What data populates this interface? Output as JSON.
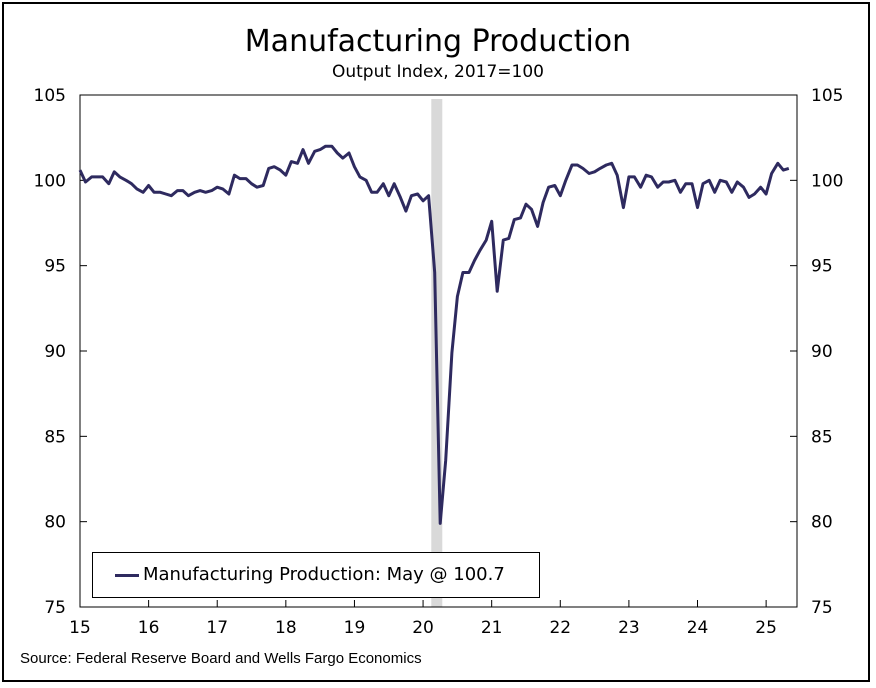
{
  "chart_data": {
    "type": "line",
    "title": "Manufacturing Production",
    "subtitle": "Output Index, 2017=100",
    "source": "Source: Federal Reserve Board and Wells Fargo Economics",
    "xlim": [
      2015,
      2025.45
    ],
    "ylim": [
      75,
      105
    ],
    "yticks": [
      75,
      80,
      85,
      90,
      95,
      100,
      105
    ],
    "xticks": [
      2015,
      2016,
      2017,
      2018,
      2019,
      2020,
      2021,
      2022,
      2023,
      2024,
      2025
    ],
    "xtick_labels": [
      "15",
      "16",
      "17",
      "18",
      "19",
      "20",
      "21",
      "22",
      "23",
      "24",
      "25"
    ],
    "shaded_regions": [
      {
        "from": 2020.12,
        "to": 2020.28,
        "label": ""
      }
    ],
    "grid": false,
    "legend_position": "bottom-left",
    "series": [
      {
        "name": "Manufacturing Production: May @ 100.7",
        "color": "#2e2a5f",
        "x": [
          2015.0,
          2015.08,
          2015.17,
          2015.25,
          2015.33,
          2015.42,
          2015.5,
          2015.58,
          2015.67,
          2015.75,
          2015.83,
          2015.92,
          2016.0,
          2016.08,
          2016.17,
          2016.25,
          2016.33,
          2016.42,
          2016.5,
          2016.58,
          2016.67,
          2016.75,
          2016.83,
          2016.92,
          2017.0,
          2017.08,
          2017.17,
          2017.25,
          2017.33,
          2017.42,
          2017.5,
          2017.58,
          2017.67,
          2017.75,
          2017.83,
          2017.92,
          2018.0,
          2018.08,
          2018.17,
          2018.25,
          2018.33,
          2018.42,
          2018.5,
          2018.58,
          2018.67,
          2018.75,
          2018.83,
          2018.92,
          2019.0,
          2019.08,
          2019.17,
          2019.25,
          2019.33,
          2019.42,
          2019.5,
          2019.58,
          2019.67,
          2019.75,
          2019.83,
          2019.92,
          2020.0,
          2020.08,
          2020.17,
          2020.25,
          2020.33,
          2020.42,
          2020.5,
          2020.58,
          2020.67,
          2020.75,
          2020.83,
          2020.92,
          2021.0,
          2021.08,
          2021.17,
          2021.25,
          2021.33,
          2021.42,
          2021.5,
          2021.58,
          2021.67,
          2021.75,
          2021.83,
          2021.92,
          2022.0,
          2022.08,
          2022.17,
          2022.25,
          2022.33,
          2022.42,
          2022.5,
          2022.58,
          2022.67,
          2022.75,
          2022.83,
          2022.92,
          2023.0,
          2023.08,
          2023.17,
          2023.25,
          2023.33,
          2023.42,
          2023.5,
          2023.58,
          2023.67,
          2023.75,
          2023.83,
          2023.92,
          2024.0,
          2024.08,
          2024.17,
          2024.25,
          2024.33,
          2024.42,
          2024.5,
          2024.58,
          2024.67,
          2024.75,
          2024.83,
          2024.92,
          2025.0,
          2025.08,
          2025.17,
          2025.25,
          2025.33
        ],
        "values": [
          100.6,
          99.9,
          100.2,
          100.2,
          100.2,
          99.8,
          100.5,
          100.2,
          100.0,
          99.8,
          99.5,
          99.3,
          99.7,
          99.3,
          99.3,
          99.2,
          99.1,
          99.4,
          99.4,
          99.1,
          99.3,
          99.4,
          99.3,
          99.4,
          99.6,
          99.5,
          99.2,
          100.3,
          100.1,
          100.1,
          99.8,
          99.6,
          99.7,
          100.7,
          100.8,
          100.6,
          100.3,
          101.1,
          101.0,
          101.8,
          101.0,
          101.7,
          101.8,
          102.0,
          102.0,
          101.6,
          101.3,
          101.6,
          100.8,
          100.2,
          100.0,
          99.3,
          99.3,
          99.8,
          99.1,
          99.8,
          99.0,
          98.2,
          99.1,
          99.2,
          98.8,
          99.1,
          94.6,
          79.9,
          83.6,
          89.9,
          93.2,
          94.6,
          94.6,
          95.3,
          95.9,
          96.5,
          97.6,
          93.5,
          96.5,
          96.6,
          97.7,
          97.8,
          98.6,
          98.3,
          97.3,
          98.7,
          99.6,
          99.7,
          99.1,
          100.0,
          100.9,
          100.9,
          100.7,
          100.4,
          100.5,
          100.7,
          100.9,
          101.0,
          100.3,
          98.4,
          100.2,
          100.2,
          99.6,
          100.3,
          100.2,
          99.6,
          99.9,
          99.9,
          100.0,
          99.3,
          99.8,
          99.8,
          98.4,
          99.8,
          100.0,
          99.3,
          100.0,
          99.9,
          99.3,
          99.9,
          99.6,
          99.0,
          99.2,
          99.6,
          99.2,
          100.4,
          101.0,
          100.6,
          100.7
        ]
      }
    ]
  }
}
